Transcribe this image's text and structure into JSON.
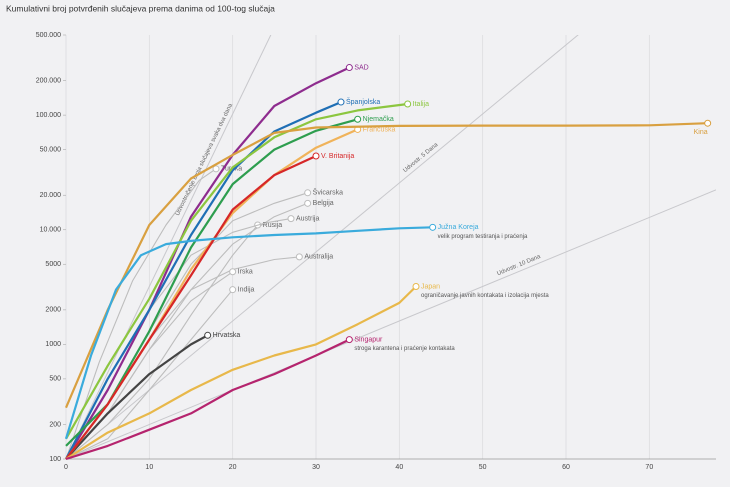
{
  "chart_data": {
    "type": "line",
    "log_y": true,
    "grid": true,
    "title": "Kumulativni broj potvrđenih slučajeva prema danima od 100-tog slučaja",
    "xlim": [
      0,
      78
    ],
    "xticks": [
      0,
      10,
      20,
      30,
      40,
      50,
      60,
      70
    ],
    "ylim": [
      100,
      500000
    ],
    "yticks": [
      100,
      200,
      500,
      1000,
      2000,
      5000,
      {
        "value": 10000,
        "label": "10.000"
      },
      {
        "value": 20000,
        "label": "20.000"
      },
      {
        "value": 50000,
        "label": "50.000"
      },
      {
        "value": 100000,
        "label": "100.000"
      },
      {
        "value": 200000,
        "label": "200.000"
      },
      {
        "value": 500000,
        "label": "500.000"
      }
    ],
    "doubling_lines": [
      {
        "days": 2,
        "label": "Udvostručenje broja slučajeva svaka dva dana"
      },
      {
        "days": 5,
        "label": "Udvostr. 5 Dana"
      },
      {
        "days": 10,
        "label": "Udvostr. 10 Dana"
      }
    ],
    "series": [
      {
        "name": "Turska",
        "color": "#bdbdbd",
        "x": [
          0,
          4,
          8,
          12,
          16,
          18
        ],
        "values": [
          100,
          700,
          3600,
          11000,
          27000,
          34000
        ]
      },
      {
        "name": "Švicarska",
        "color": "#bdbdbd",
        "x": [
          0,
          5,
          10,
          15,
          20,
          25,
          29
        ],
        "values": [
          100,
          300,
          1300,
          5000,
          12000,
          17000,
          21000
        ]
      },
      {
        "name": "Belgija",
        "color": "#bdbdbd",
        "x": [
          0,
          5,
          10,
          15,
          20,
          25,
          29
        ],
        "values": [
          100,
          250,
          900,
          3000,
          7500,
          13000,
          17000
        ]
      },
      {
        "name": "Rusija",
        "color": "#bdbdbd",
        "x": [
          0,
          5,
          10,
          15,
          20,
          23
        ],
        "values": [
          100,
          200,
          500,
          1800,
          6000,
          11000
        ]
      },
      {
        "name": "Austrija",
        "color": "#bdbdbd",
        "x": [
          0,
          5,
          10,
          15,
          20,
          24,
          27
        ],
        "values": [
          100,
          500,
          2000,
          6000,
          9500,
          11500,
          12500
        ]
      },
      {
        "name": "Australija",
        "color": "#bdbdbd",
        "x": [
          0,
          5,
          10,
          15,
          20,
          25,
          28
        ],
        "values": [
          100,
          300,
          1100,
          3000,
          4500,
          5500,
          5800
        ]
      },
      {
        "name": "Irska",
        "color": "#bdbdbd",
        "x": [
          0,
          5,
          10,
          15,
          20
        ],
        "values": [
          100,
          250,
          900,
          2400,
          4300
        ]
      },
      {
        "name": "Indija",
        "color": "#bdbdbd",
        "x": [
          0,
          5,
          10,
          15,
          20
        ],
        "values": [
          100,
          150,
          400,
          1100,
          3000
        ]
      },
      {
        "name": "Hrvatska",
        "color": "#444444",
        "x": [
          0,
          5,
          10,
          15,
          17
        ],
        "values": [
          100,
          250,
          550,
          1000,
          1200
        ]
      },
      {
        "name": "SAD",
        "color": "#8e2c8e",
        "x": [
          0,
          5,
          10,
          15,
          20,
          25,
          30,
          34
        ],
        "values": [
          100,
          400,
          2000,
          13000,
          45000,
          120000,
          190000,
          260000
        ]
      },
      {
        "name": "Španjolska",
        "color": "#1f6fb5",
        "x": [
          0,
          5,
          10,
          15,
          20,
          25,
          30,
          33
        ],
        "values": [
          100,
          500,
          2000,
          9000,
          33000,
          72000,
          105000,
          130000
        ]
      },
      {
        "name": "Italija",
        "color": "#8cc63f",
        "x": [
          0,
          5,
          10,
          15,
          20,
          25,
          30,
          35,
          41
        ],
        "values": [
          150,
          650,
          2500,
          12000,
          35000,
          64000,
          92000,
          110000,
          125000
        ]
      },
      {
        "name": "Njemačka",
        "color": "#2e9e4f",
        "x": [
          0,
          5,
          10,
          15,
          20,
          25,
          30,
          35
        ],
        "values": [
          130,
          300,
          1300,
          7000,
          25000,
          50000,
          73000,
          92000
        ]
      },
      {
        "name": "Francuska",
        "color": "#f0b35a",
        "x": [
          0,
          5,
          10,
          15,
          20,
          25,
          30,
          35
        ],
        "values": [
          100,
          300,
          1100,
          4500,
          14000,
          30000,
          52000,
          75000
        ]
      },
      {
        "name": "Kina",
        "color": "#d9a040",
        "x": [
          0,
          5,
          10,
          15,
          20,
          25,
          30,
          40,
          50,
          60,
          70,
          77
        ],
        "values": [
          280,
          2000,
          11000,
          28000,
          45000,
          70000,
          78000,
          80500,
          81000,
          81000,
          81500,
          85000
        ]
      },
      {
        "name": "V. Britanija",
        "color": "#d62728",
        "x": [
          0,
          5,
          10,
          15,
          20,
          25,
          30
        ],
        "values": [
          100,
          300,
          1100,
          4000,
          15000,
          30000,
          44000
        ]
      },
      {
        "name": "Južna Koreja",
        "color": "#3aabdc",
        "note": "velik program testiranja i praćenja",
        "x": [
          0,
          3,
          6,
          9,
          12,
          15,
          20,
          25,
          30,
          35,
          40,
          44
        ],
        "values": [
          150,
          800,
          3000,
          6000,
          7500,
          8000,
          8600,
          9000,
          9300,
          9800,
          10300,
          10500
        ]
      },
      {
        "name": "Japan",
        "color": "#e8b84a",
        "note": "ograničavanje javnih kontakata i izolacija mjesta",
        "x": [
          0,
          5,
          10,
          15,
          20,
          25,
          30,
          35,
          40,
          42
        ],
        "values": [
          100,
          170,
          250,
          400,
          600,
          800,
          1000,
          1500,
          2300,
          3200
        ]
      },
      {
        "name": "Singapur",
        "color": "#b5246e",
        "note": "stroga karantena i praćenje kontakata",
        "x": [
          0,
          5,
          10,
          15,
          20,
          25,
          30,
          34
        ],
        "values": [
          100,
          130,
          180,
          250,
          400,
          550,
          800,
          1100
        ]
      }
    ]
  }
}
